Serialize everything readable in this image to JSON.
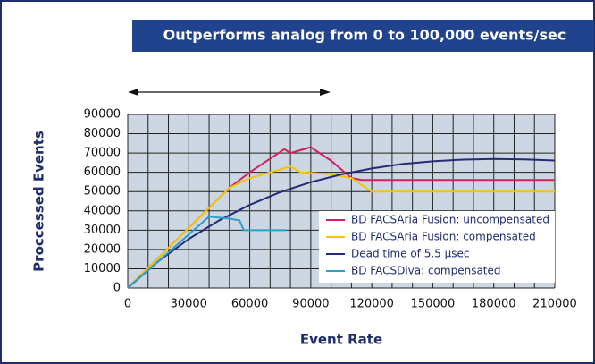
{
  "chart_data": {
    "type": "line",
    "title": "Outperforms analog from 0 to 100,000 events/sec",
    "x_label": "Event Rate",
    "y_label": "Proccessed Events",
    "xlim": [
      0,
      210000
    ],
    "xticks": [
      0,
      30000,
      60000,
      90000,
      120000,
      150000,
      180000,
      210000
    ],
    "ylim": [
      0,
      90000
    ],
    "yticks": [
      0,
      10000,
      20000,
      30000,
      40000,
      50000,
      60000,
      70000,
      80000,
      90000
    ],
    "grid": true,
    "series": [
      {
        "name": "BD FACSAria Fusion: uncompensated",
        "color": "#d3215b",
        "x": [
          0,
          50000,
          60000,
          77000,
          80000,
          90000,
          100000,
          110000,
          115000,
          210000
        ],
        "values": [
          0,
          52000,
          60000,
          72000,
          70000,
          73000,
          66000,
          57000,
          56000,
          56000
        ]
      },
      {
        "name": "BD FACSAria Fusion: compensated",
        "color": "#f5c400",
        "x": [
          0,
          50000,
          60000,
          80000,
          85000,
          100000,
          110000,
          120000,
          210000
        ],
        "values": [
          0,
          52000,
          57000,
          63000,
          60000,
          59000,
          57000,
          50000,
          50000
        ]
      },
      {
        "name": "Dead time of 5.5 μsec",
        "color": "#262b78",
        "x": [
          0,
          15000,
          30000,
          45000,
          60000,
          75000,
          90000,
          105000,
          120000,
          135000,
          150000,
          165000,
          180000,
          195000,
          210000
        ],
        "values": [
          0,
          13800,
          25400,
          35100,
          43100,
          49700,
          54900,
          58900,
          62000,
          64300,
          65700,
          66600,
          66900,
          66700,
          66100
        ]
      },
      {
        "name": "BD FACSDiva: compensated",
        "color": "#2a9fc9",
        "x": [
          0,
          40000,
          50000,
          55000,
          57000,
          78000
        ],
        "values": [
          0,
          37000,
          36000,
          35000,
          30000,
          30000
        ]
      }
    ]
  }
}
